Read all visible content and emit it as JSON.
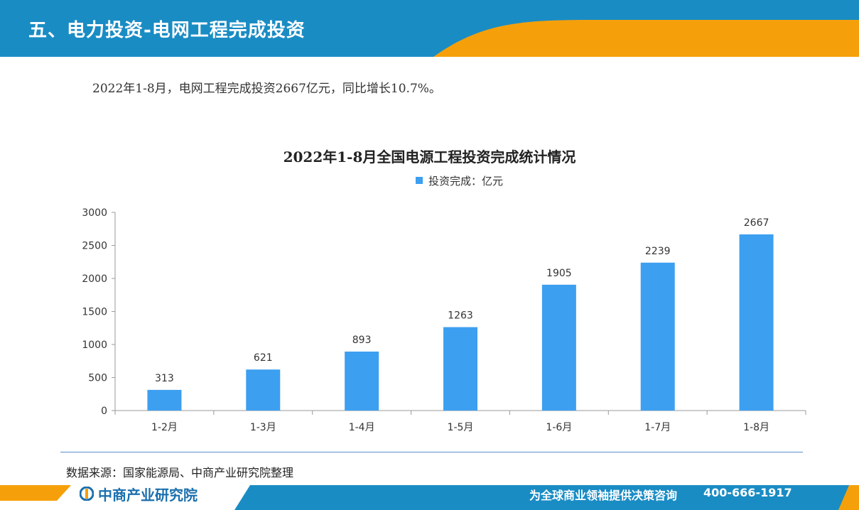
{
  "header": {
    "title": "五、电力投资-电网工程完成投资"
  },
  "summary": "2022年1-8月，电网工程完成投资2667亿元，同比增长10.7%。",
  "chart_data": {
    "type": "bar",
    "title": "2022年1-8月全国电源工程投资完成统计情况",
    "categories": [
      "1-2月",
      "1-3月",
      "1-4月",
      "1-5月",
      "1-6月",
      "1-7月",
      "1-8月"
    ],
    "series": [
      {
        "name": "投资完成：亿元",
        "values": [
          313,
          621,
          893,
          1263,
          1905,
          2239,
          2667
        ],
        "color": "#3d9ff0"
      }
    ],
    "yticks": [
      0,
      500,
      1000,
      1500,
      2000,
      2500,
      3000
    ],
    "ylim": [
      0,
      3000
    ],
    "xlabel": "",
    "ylabel": "",
    "grid": false,
    "legend": "top-center"
  },
  "source": "数据来源：国家能源局、中商产业研究院整理",
  "footer": {
    "logo_text": "中商产业研究院",
    "slogan": "为全球商业领袖提供决策咨询",
    "phone": "400-666-1917"
  },
  "colors": {
    "header_blue": "#1a8cc4",
    "accent_orange": "#f5a00a",
    "bar_blue": "#3d9ff0",
    "logo_blue": "#1a6fae"
  },
  "icons": {
    "logo": "company-logo-icon"
  }
}
